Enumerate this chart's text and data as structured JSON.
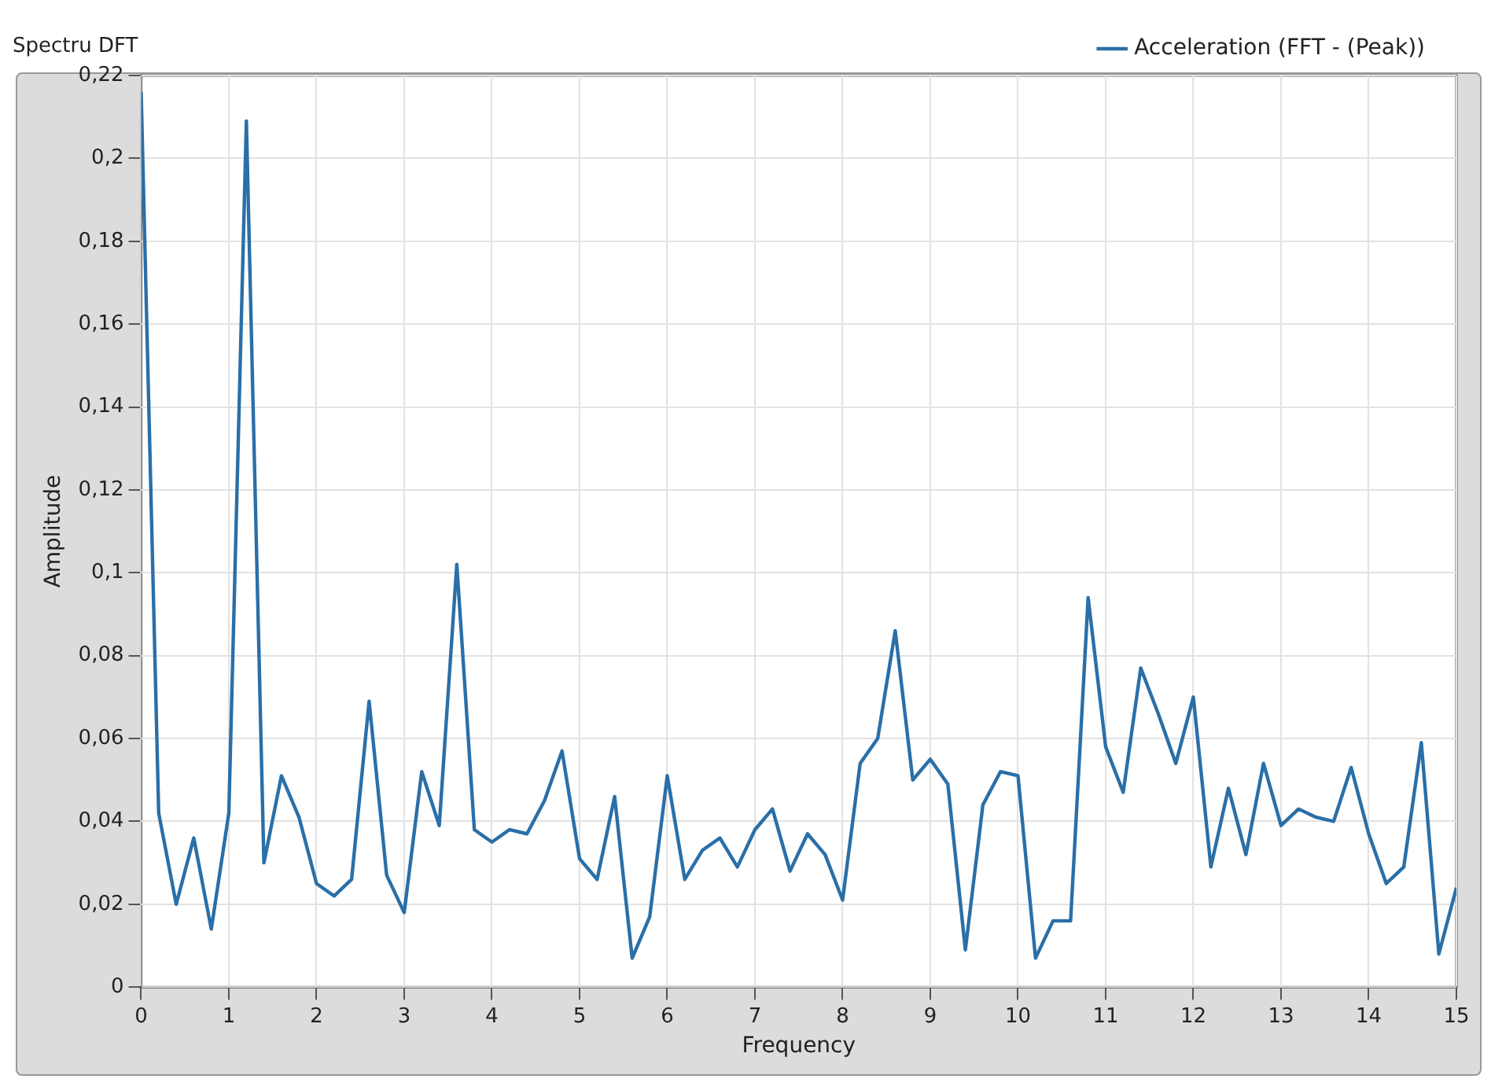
{
  "chart_data": {
    "type": "line",
    "title": "Spectru DFT",
    "xlabel": "Frequency",
    "ylabel": "Amplitude",
    "x": [
      0,
      0.2,
      0.4,
      0.6,
      0.8,
      1,
      1.2,
      1.4,
      1.6,
      1.8,
      2,
      2.2,
      2.4,
      2.6,
      2.8,
      3,
      3.2,
      3.4,
      3.6,
      3.8,
      4,
      4.2,
      4.4,
      4.6,
      4.8,
      5,
      5.2,
      5.4,
      5.6,
      5.8,
      6,
      6.2,
      6.4,
      6.6,
      6.8,
      7,
      7.2,
      7.4,
      7.6,
      7.8,
      8,
      8.2,
      8.4,
      8.6,
      8.8,
      9,
      9.2,
      9.4,
      9.6,
      9.8,
      10,
      10.2,
      10.4,
      10.6,
      10.8,
      11,
      11.2,
      11.4,
      11.6,
      11.8,
      12,
      12.2,
      12.4,
      12.6,
      12.8,
      13,
      13.2,
      13.4,
      13.6,
      13.8,
      14,
      14.2,
      14.4,
      14.6,
      14.8,
      15
    ],
    "series": [
      {
        "name": "Acceleration (FFT - (Peak))",
        "color": "#2a6fa8",
        "values": [
          0.216,
          0.042,
          0.02,
          0.036,
          0.014,
          0.042,
          0.209,
          0.03,
          0.051,
          0.041,
          0.025,
          0.022,
          0.026,
          0.069,
          0.027,
          0.018,
          0.052,
          0.039,
          0.102,
          0.038,
          0.035,
          0.038,
          0.037,
          0.045,
          0.057,
          0.031,
          0.026,
          0.046,
          0.007,
          0.017,
          0.051,
          0.026,
          0.033,
          0.036,
          0.029,
          0.038,
          0.043,
          0.028,
          0.037,
          0.032,
          0.021,
          0.054,
          0.06,
          0.086,
          0.05,
          0.055,
          0.049,
          0.009,
          0.044,
          0.052,
          0.051,
          0.007,
          0.016,
          0.016,
          0.094,
          0.058,
          0.047,
          0.077,
          0.066,
          0.054,
          0.07,
          0.029,
          0.048,
          0.032,
          0.054,
          0.039,
          0.043,
          0.041,
          0.04,
          0.053,
          0.037,
          0.025,
          0.029,
          0.059,
          0.008,
          0.024
        ]
      }
    ],
    "xlim": [
      0,
      15
    ],
    "xticks": [
      0,
      1,
      2,
      3,
      4,
      5,
      6,
      7,
      8,
      9,
      10,
      11,
      12,
      13,
      14,
      15
    ],
    "ylim": [
      0,
      0.22
    ],
    "yticks": [
      {
        "value": 0,
        "label": "0"
      },
      {
        "value": 0.02,
        "label": "0,02"
      },
      {
        "value": 0.04,
        "label": "0,04"
      },
      {
        "value": 0.06,
        "label": "0,06"
      },
      {
        "value": 0.08,
        "label": "0,08"
      },
      {
        "value": 0.1,
        "label": "0,1"
      },
      {
        "value": 0.12,
        "label": "0,12"
      },
      {
        "value": 0.14,
        "label": "0,14"
      },
      {
        "value": 0.16,
        "label": "0,16"
      },
      {
        "value": 0.18,
        "label": "0,18"
      },
      {
        "value": 0.2,
        "label": "0,2"
      },
      {
        "value": 0.22,
        "label": "0,22"
      }
    ],
    "grid": true,
    "legend": "top right",
    "marker": "none",
    "line_style": "solid"
  }
}
